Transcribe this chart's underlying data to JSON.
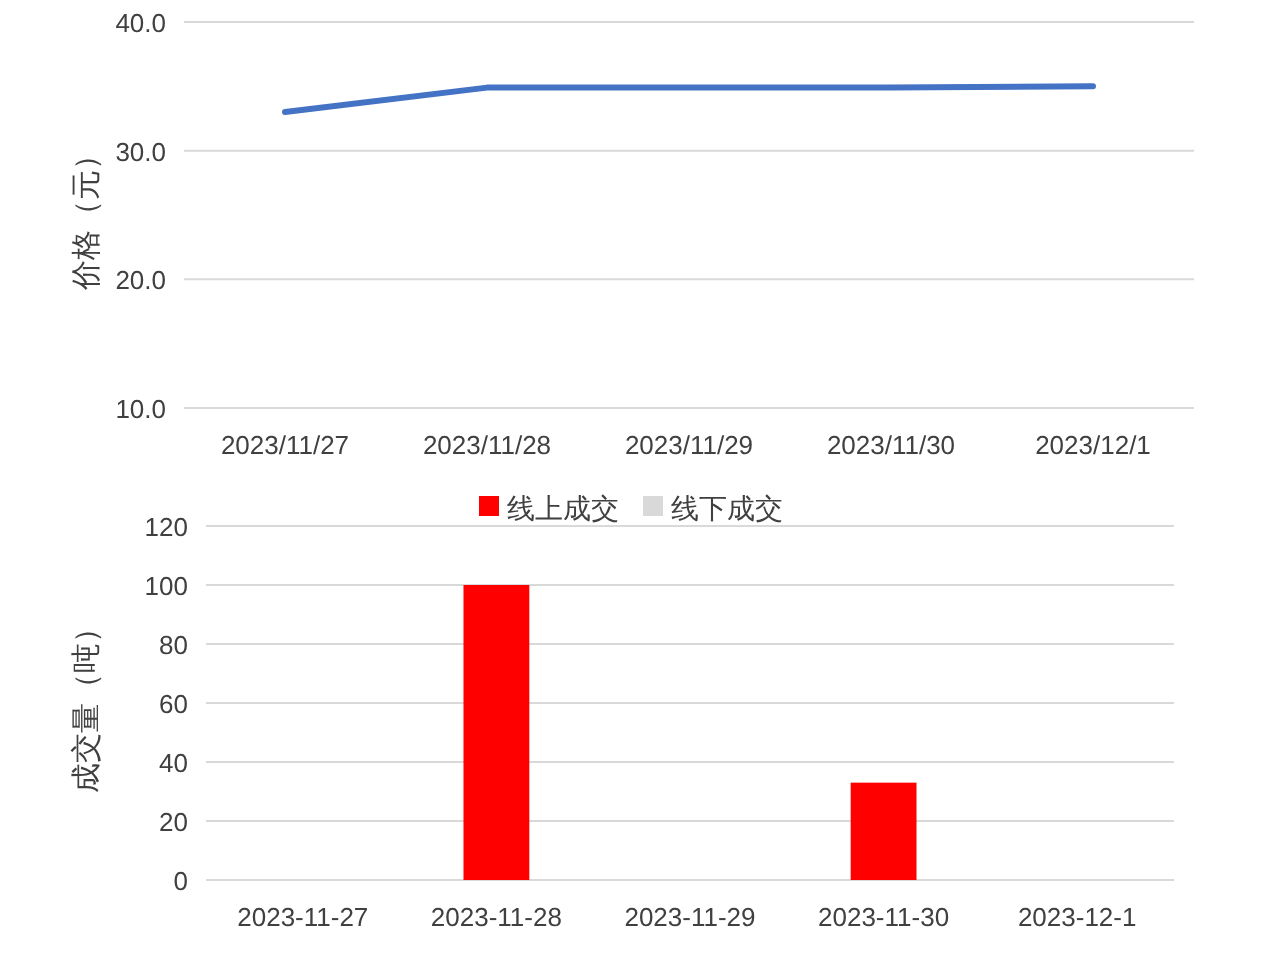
{
  "chart_data": [
    {
      "type": "line",
      "categories": [
        "2023/11/27",
        "2023/11/28",
        "2023/11/29",
        "2023/11/30",
        "2023/12/1"
      ],
      "series": [
        {
          "color": "#4472c4",
          "values": [
            33.0,
            34.9,
            34.9,
            34.9,
            35.0
          ]
        }
      ],
      "ylabel": "价格（元）",
      "ylim": [
        10,
        40
      ],
      "yticks": [
        {
          "value": 10,
          "label": "10.0"
        },
        {
          "value": 20,
          "label": "20.0"
        },
        {
          "value": 30,
          "label": "30.0"
        },
        {
          "value": 40,
          "label": "40.0"
        }
      ],
      "grid": "y"
    },
    {
      "type": "bar",
      "categories": [
        "2023-11-27",
        "2023-11-28",
        "2023-11-29",
        "2023-11-30",
        "2023-12-1"
      ],
      "series": [
        {
          "name": "线上成交",
          "color": "#ff0000",
          "values": [
            null,
            100,
            null,
            33,
            null
          ]
        },
        {
          "name": "线下成交",
          "color": "#d9d9d9",
          "values": [
            null,
            null,
            null,
            null,
            null
          ]
        }
      ],
      "ylabel": "成交量（吨）",
      "ylim": [
        0,
        120
      ],
      "yticks": [
        0,
        20,
        40,
        60,
        80,
        100,
        120
      ],
      "grid": "y",
      "legend": "top"
    }
  ]
}
